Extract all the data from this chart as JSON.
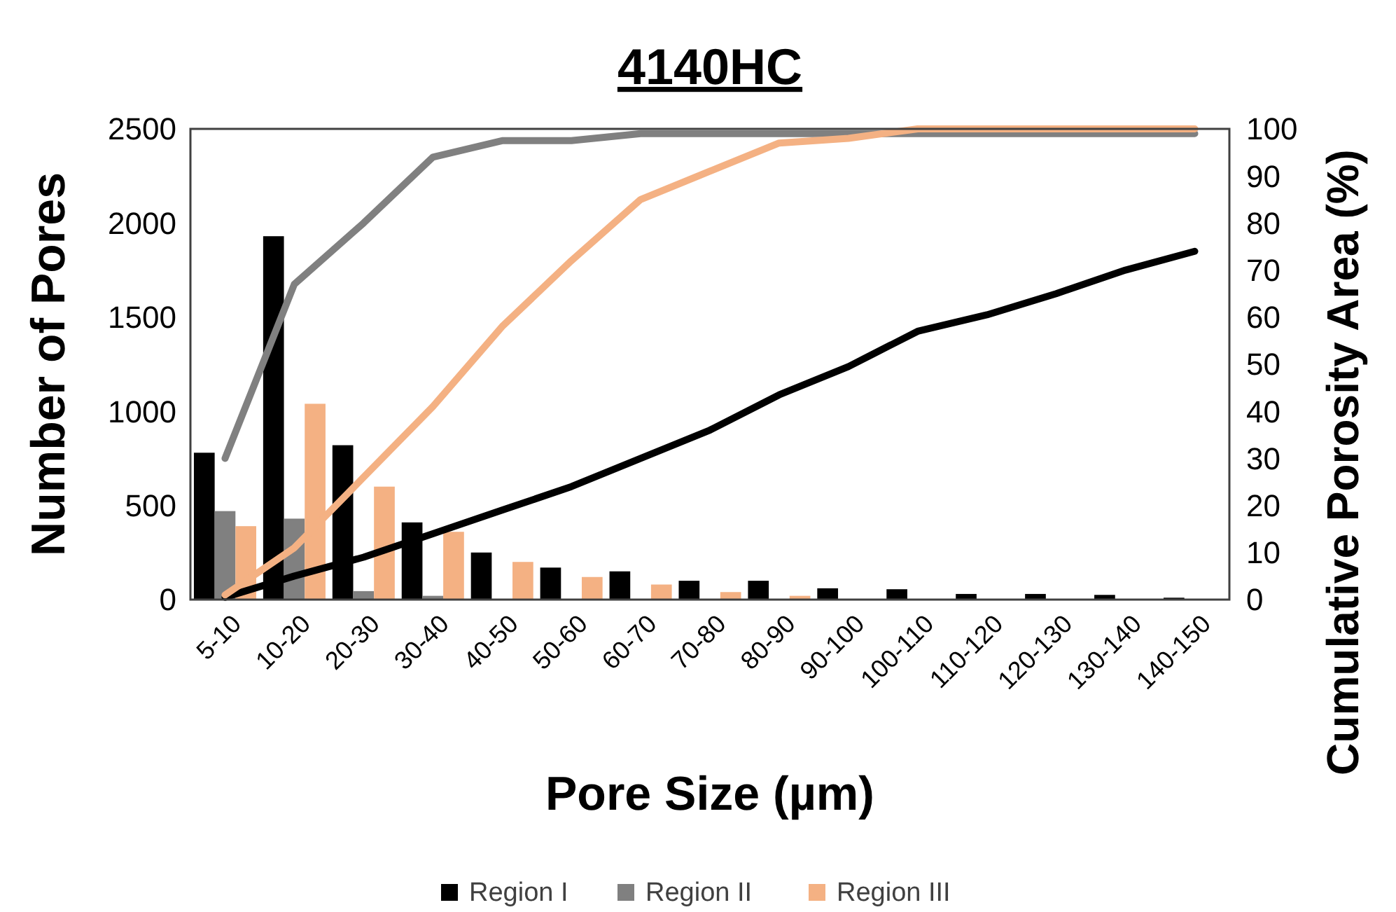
{
  "chart_data": {
    "type": "bar",
    "title": "4140HC",
    "xlabel": "Pore Size (µm)",
    "ylabel": "Number of Pores",
    "y2label": "Cumulative Porosity Area (%)",
    "categories": [
      "5-10",
      "10-20",
      "20-30",
      "30-40",
      "40-50",
      "50-60",
      "60-70",
      "70-80",
      "80-90",
      "90-100",
      "100-110",
      "110-120",
      "120-130",
      "130-140",
      "140-150"
    ],
    "series": [
      {
        "name": "Region I",
        "color": "#000000",
        "values": [
          780,
          1930,
          820,
          410,
          250,
          170,
          150,
          100,
          100,
          60,
          55,
          30,
          30,
          25,
          10
        ]
      },
      {
        "name": "Region II",
        "color": "#808080",
        "values": [
          470,
          430,
          45,
          20,
          null,
          0,
          0,
          0,
          0,
          0,
          0,
          0,
          0,
          0,
          0
        ]
      },
      {
        "name": "Region III",
        "color": "#f4b183",
        "values": [
          390,
          1040,
          600,
          360,
          200,
          120,
          80,
          40,
          20,
          null,
          0,
          0,
          0,
          0,
          0
        ]
      },
      {
        "type": "line",
        "axis": "y2",
        "color": "#000000",
        "values": [
          0.5,
          5,
          9,
          14,
          19,
          24,
          30,
          36,
          43.5,
          49.5,
          57,
          60.5,
          65,
          70,
          74
        ]
      },
      {
        "type": "line",
        "axis": "y2",
        "color": "#808080",
        "values": [
          30,
          67,
          80,
          94,
          97.5,
          97.5,
          99,
          99,
          99,
          99,
          99,
          99,
          99,
          99,
          99
        ]
      },
      {
        "type": "line",
        "axis": "y2",
        "color": "#f4b183",
        "values": [
          1,
          11,
          26,
          41,
          58,
          72,
          85,
          91,
          97,
          98,
          100,
          100,
          100,
          100,
          100
        ]
      }
    ],
    "ylim": [
      0,
      2500
    ],
    "yticks": [
      0,
      500,
      1000,
      1500,
      2000,
      2500
    ],
    "y2lim": [
      0,
      100
    ],
    "y2ticks": [
      0,
      10,
      20,
      30,
      40,
      50,
      60,
      70,
      80,
      90,
      100
    ],
    "legend": "bottom",
    "grid": false
  }
}
